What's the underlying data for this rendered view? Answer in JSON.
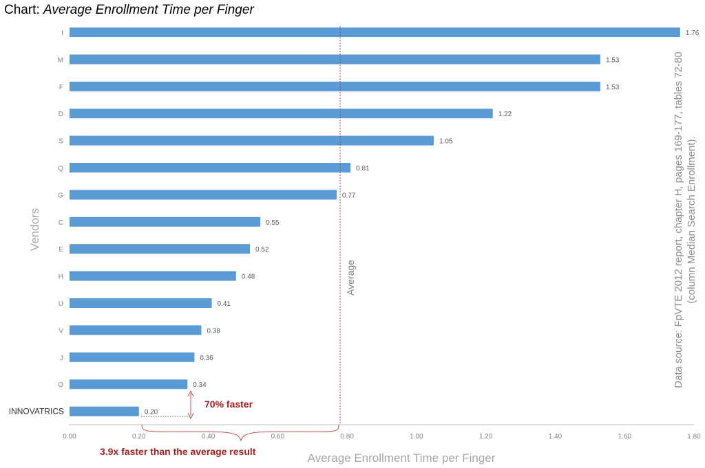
{
  "heading": {
    "prefix": "Chart: ",
    "title": "Average Enrollment Time per Finger"
  },
  "colors": {
    "bar": "#5b9bd5",
    "annotation": "#a02020",
    "axis_text": "#7f7f7f",
    "grid": "#d9d9d9",
    "average_line": "#a04040"
  },
  "chart_data": {
    "type": "bar",
    "orientation": "horizontal",
    "categories": [
      "I",
      "M",
      "F",
      "D",
      "S",
      "Q",
      "G",
      "C",
      "E",
      "H",
      "U",
      "V",
      "J",
      "O",
      "INNOVATRICS"
    ],
    "values": [
      1.76,
      1.53,
      1.53,
      1.22,
      1.05,
      0.81,
      0.77,
      0.55,
      0.52,
      0.48,
      0.41,
      0.38,
      0.36,
      0.34,
      0.2
    ],
    "value_labels": [
      "1.76",
      "1.53",
      "1.53",
      "1.22",
      "1.05",
      "0.81",
      "0.77",
      "0.55",
      "0.52",
      "0.48",
      "0.41",
      "0.38",
      "0.36",
      "0.34",
      "0.20"
    ],
    "xlabel": "Average Enrollment Time per Finger",
    "ylabel": "Vendors",
    "xlim": [
      0,
      1.8
    ],
    "x_ticks": [
      "0.00",
      "0.20",
      "0.40",
      "0.60",
      "0.80",
      "1.00",
      "1.20",
      "1.40",
      "1.60",
      "1.80"
    ],
    "grid": false,
    "average": {
      "value": 0.78,
      "label": "Average"
    },
    "annotations": {
      "faster_than_next": "70% faster",
      "faster_than_average": "3.9x faster than the average result"
    },
    "source_lines": [
      "Data source: FpVTE 2012 report, chapter H, pages 169-177, tables 72-80",
      "(column Median Search Enrollment)."
    ]
  }
}
